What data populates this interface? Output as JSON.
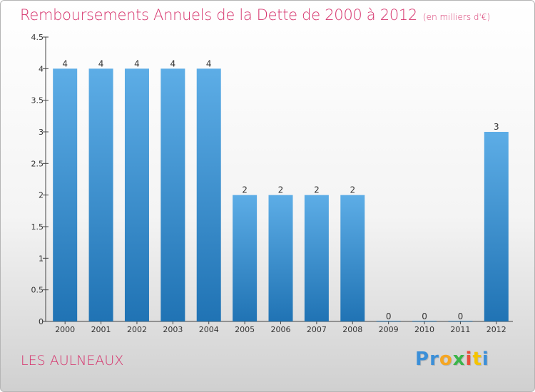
{
  "title": "Remboursements Annuels de la Dette de 2000 à 2012",
  "subtitle": "(en milliers d'€)",
  "commune": "LES AULNEAUX",
  "logo": {
    "letters": [
      "P",
      "r",
      "o",
      "x",
      "i",
      "t",
      "i"
    ],
    "colors": [
      "#3b8fd8",
      "#3b8fd8",
      "#f5a623",
      "#3bb54a",
      "#e94e3c",
      "#f5c400",
      "#3b8fd8"
    ]
  },
  "colors": {
    "title": "#d6336c",
    "bar_top": "#5dade6",
    "bar_bottom": "#2073b4"
  },
  "chart_data": {
    "type": "bar",
    "categories": [
      "2000",
      "2001",
      "2002",
      "2003",
      "2004",
      "2005",
      "2006",
      "2007",
      "2008",
      "2009",
      "2010",
      "2011",
      "2012"
    ],
    "values": [
      4,
      4,
      4,
      4,
      4,
      2,
      2,
      2,
      2,
      0,
      0,
      0,
      3
    ],
    "data_labels": [
      "4",
      "4",
      "4",
      "4",
      "4",
      "2",
      "2",
      "2",
      "2",
      "0",
      "0",
      "0",
      "3"
    ],
    "ylim": [
      0,
      4.5
    ],
    "y_ticks": [
      0,
      0.5,
      1,
      1.5,
      2,
      2.5,
      3,
      3.5,
      4,
      4.5
    ],
    "y_tick_labels": [
      "0",
      "0.5",
      "1",
      "1.5",
      "2",
      "2.5",
      "3",
      "3.5",
      "4",
      "4.5"
    ],
    "xlabel": "",
    "ylabel": "",
    "grid": false,
    "legend": "none"
  }
}
